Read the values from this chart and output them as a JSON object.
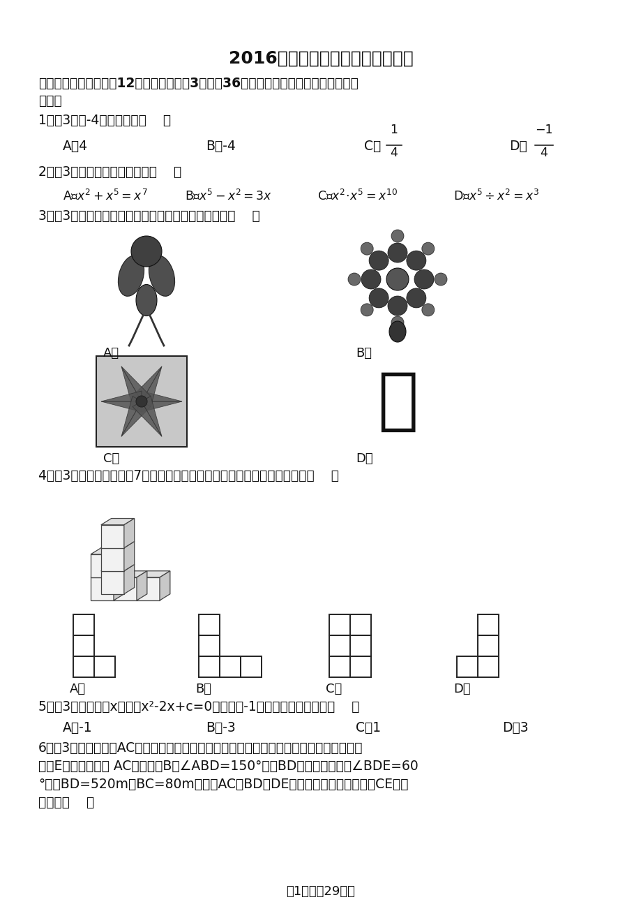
{
  "title": "2016年四川省绵阳市中考数学试卷",
  "bg": "#ffffff",
  "section1": "一、选择题：本大题兲12个小题，每小颙3分，兲36分，每小题只有一个选项最符合题",
  "section1b": "目要求",
  "q1": "1．（3分）-4的绝对值是（    ）",
  "q1_A": "A．4",
  "q1_B": "B．-4",
  "q2": "2．（3分）下列计算正确的是（    ）",
  "q3": "3．（3分）下列图案，既是轴对称又是中心对称的是（    ）",
  "q4": "4．（3分）如图是一个〗7个相同正方体组合而成的几何体，它的主视图为（    ）",
  "q5": "5．（3分）若关于x的方程x²-2x+c=0有一根为-1，则方程的另一根为（    ）",
  "q5_A": "A．-1",
  "q5_B": "B．-3",
  "q5_C": "C．1",
  "q5_D": "D．3",
  "q6_1": "6．（3分）如图，沿AC方向开山修建一条公路，为了加快施工进度，要在小山的另一边寻",
  "q6_2": "找点E同时施工，从 AC上的一点B取∠ABD=150°，沿BD的方向前进，取∠BDE=60",
  "q6_3": "°，测BD=520m，BC=80m，并且AC，BD和DE在同一平面内，那么公路CE段的",
  "q6_4": "长度为（    ）",
  "footer": "第1页（內29页）"
}
